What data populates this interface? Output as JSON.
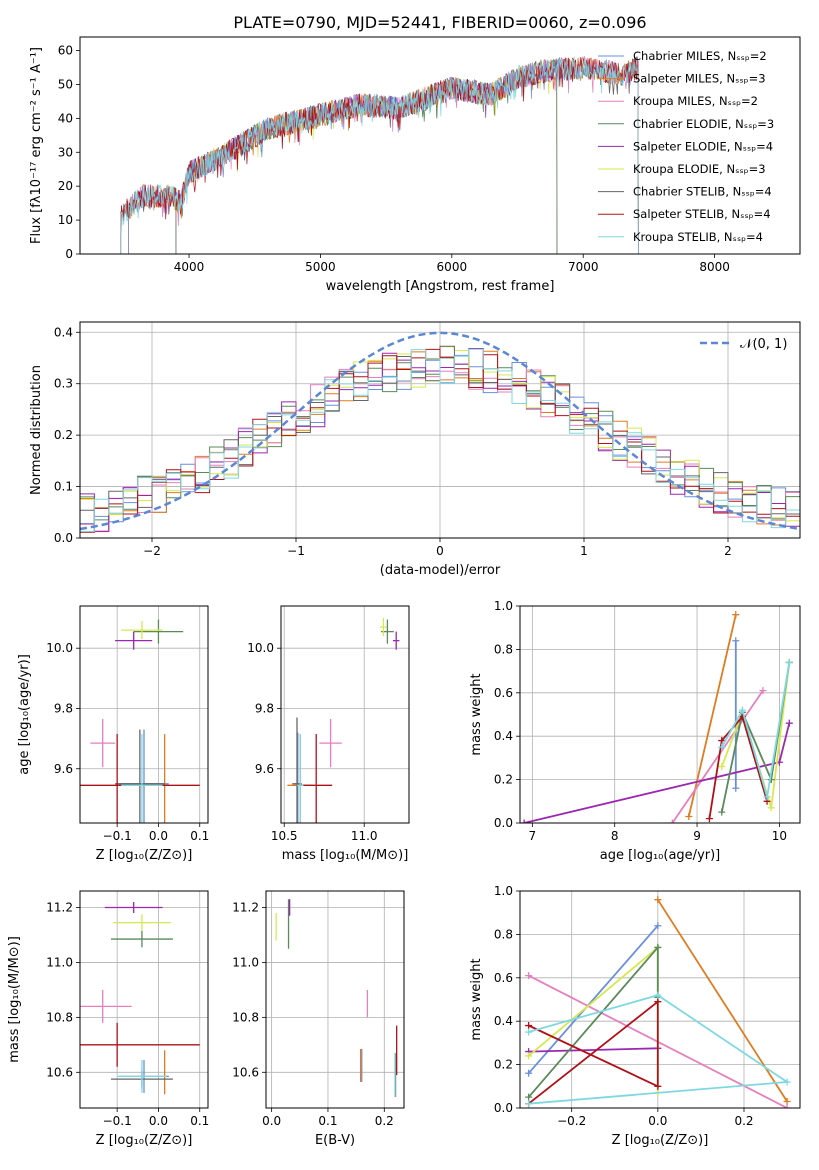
{
  "colors": [
    "#6a8fdc",
    "#e07b20",
    "#e57fbe",
    "#b8860b",
    "#5a8a5a",
    "#9b27b0",
    "#d5e84e",
    "#666666",
    "#b01018",
    "#7fd8e0"
  ],
  "chart_data": [
    {
      "id": "spectrum",
      "type": "line",
      "title": "PLATE=0790, MJD=52441, FIBERID=0060, z=0.096",
      "xlabel": "wavelength [Angstrom, rest frame]",
      "ylabel": "Flux [fλ10⁻¹⁷ erg cm⁻² s⁻¹ A⁻¹]",
      "xlim": [
        3170,
        8650
      ],
      "ylim": [
        0,
        64
      ],
      "xticks": [
        4000,
        5000,
        6000,
        7000,
        8000
      ],
      "yticks": [
        0,
        10,
        20,
        30,
        40,
        50,
        60
      ],
      "legend_position": "top-right",
      "continuum": {
        "x": [
          3470,
          3560,
          3640,
          3700,
          3860,
          3940,
          4000,
          4300,
          4600,
          5000,
          5300,
          5600,
          6000,
          6300,
          6500,
          6700,
          7000,
          7300,
          7420
        ],
        "y": [
          11,
          14,
          17,
          17,
          17,
          15,
          24,
          30,
          37,
          41,
          44,
          43,
          49,
          47,
          52,
          54,
          55,
          53,
          55
        ]
      },
      "series": [
        {
          "name": "Chabrier MILES, N_SSP=2",
          "xmin": 3540,
          "xmax": 7420
        },
        {
          "name": "Salpeter MILES, N_SSP=3",
          "xmin": 3540,
          "xmax": 7420
        },
        {
          "name": "Kroupa MILES, N_SSP=2",
          "xmin": 3540,
          "xmax": 7420
        },
        {
          "name": "Chabrier ELODIE, N_SSP=3",
          "xmin": 3900,
          "xmax": 6800
        },
        {
          "name": "Salpeter ELODIE, N_SSP=4",
          "xmin": 3900,
          "xmax": 6800
        },
        {
          "name": "Kroupa ELODIE, N_SSP=3",
          "xmin": 3900,
          "xmax": 6800
        },
        {
          "name": "Chabrier STELIB, N_SSP=4",
          "xmin": 3480,
          "xmax": 7420
        },
        {
          "name": "Salpeter STELIB, N_SSP=4",
          "xmin": 3480,
          "xmax": 7420
        },
        {
          "name": "Kroupa STELIB, N_SSP=4",
          "xmin": 3480,
          "xmax": 7420
        }
      ]
    },
    {
      "id": "residuals",
      "type": "line",
      "xlabel": "(data-model)/error",
      "ylabel": "Normed distribution",
      "xlim": [
        -2.5,
        2.5
      ],
      "ylim": [
        0,
        0.42
      ],
      "xticks": [
        -2,
        -1,
        0,
        1,
        2
      ],
      "xtick_labels": [
        "−2",
        "−1",
        "0",
        "1",
        "2"
      ],
      "yticks": [
        0.0,
        0.1,
        0.2,
        0.3,
        0.4
      ],
      "ytick_labels": [
        "0.0",
        "0.1",
        "0.2",
        "0.3",
        "0.4"
      ],
      "grid": true,
      "legend": "𝒩(0, 1)",
      "legend_position": "top-right",
      "histogram_bins": 50,
      "histogram_series": 9
    },
    {
      "id": "age-vs-Z",
      "type": "scatter",
      "xlabel": "Z [log₁₀(Z/Z⊙)]",
      "ylabel": "age  [log₁₀(age/yr)]",
      "xlim": [
        -0.19,
        0.12
      ],
      "ylim": [
        9.42,
        10.14
      ],
      "xticks": [
        -0.1,
        0.0,
        0.1
      ],
      "xtick_labels": [
        "−0.1",
        "0.0",
        "0.1"
      ],
      "yticks": [
        9.6,
        9.8,
        10.0
      ],
      "ytick_labels": [
        "9.6",
        "9.8",
        "10.0"
      ],
      "grid": true,
      "points": [
        {
          "x": -0.035,
          "y": 9.55,
          "xerr": 0.06,
          "yerr": 0.18,
          "c": 0
        },
        {
          "x": 0.015,
          "y": 9.545,
          "xerr": 0.0,
          "yerr": 0.17,
          "c": 1
        },
        {
          "x": -0.135,
          "y": 9.685,
          "xerr": 0.03,
          "yerr": 0.08,
          "c": 2
        },
        {
          "x": 0.0,
          "y": 10.055,
          "xerr": 0.06,
          "yerr": 0.04,
          "c": 4
        },
        {
          "x": -0.06,
          "y": 10.025,
          "xerr": 0.045,
          "yerr": 0.03,
          "c": 5
        },
        {
          "x": -0.04,
          "y": 10.06,
          "xerr": 0.05,
          "yerr": 0.03,
          "c": 6
        },
        {
          "x": -0.045,
          "y": 9.55,
          "xerr": 0.06,
          "yerr": 0.18,
          "c": 7
        },
        {
          "x": -0.1,
          "y": 9.545,
          "xerr": 0.2,
          "yerr": 0.17,
          "c": 8
        },
        {
          "x": -0.04,
          "y": 9.545,
          "xerr": 0.05,
          "yerr": 0.17,
          "c": 9
        }
      ]
    },
    {
      "id": "age-vs-mass",
      "type": "scatter",
      "xlabel": "mass [log₁₀(M/M⊙)]",
      "ylabel": "",
      "xlim": [
        10.48,
        11.28
      ],
      "ylim": [
        9.42,
        10.14
      ],
      "xticks": [
        10.5,
        11.0
      ],
      "xtick_labels": [
        "10.5",
        "11.0"
      ],
      "yticks": [
        9.6,
        9.8,
        10.0
      ],
      "ytick_labels": [
        "9.6",
        "9.8",
        "10.0"
      ],
      "grid": true,
      "points": [
        {
          "x": 10.585,
          "y": 9.55,
          "xerr": 0.02,
          "yerr": 0.17,
          "c": 0
        },
        {
          "x": 10.6,
          "y": 9.545,
          "xerr": 0.08,
          "yerr": 0.17,
          "c": 1
        },
        {
          "x": 10.79,
          "y": 9.685,
          "xerr": 0.07,
          "yerr": 0.08,
          "c": 2
        },
        {
          "x": 11.145,
          "y": 10.055,
          "xerr": 0.04,
          "yerr": 0.04,
          "c": 4
        },
        {
          "x": 11.2,
          "y": 10.025,
          "xerr": 0.02,
          "yerr": 0.03,
          "c": 5
        },
        {
          "x": 11.12,
          "y": 10.07,
          "xerr": 0.02,
          "yerr": 0.03,
          "c": 6
        },
        {
          "x": 10.58,
          "y": 9.55,
          "xerr": 0.03,
          "yerr": 0.22,
          "c": 7
        },
        {
          "x": 10.7,
          "y": 9.545,
          "xerr": 0.1,
          "yerr": 0.17,
          "c": 8
        },
        {
          "x": 10.6,
          "y": 9.545,
          "xerr": 0.02,
          "yerr": 0.17,
          "c": 9
        }
      ]
    },
    {
      "id": "massweight-vs-age",
      "type": "line",
      "xlabel": "age  [log₁₀(age/yr)]",
      "ylabel": "mass weight",
      "xlim": [
        6.85,
        10.25
      ],
      "ylim": [
        0,
        1
      ],
      "xticks": [
        7,
        8,
        9,
        10
      ],
      "xtick_labels": [
        "7",
        "8",
        "9",
        "10"
      ],
      "yticks": [
        0.0,
        0.2,
        0.4,
        0.6,
        0.8,
        1.0
      ],
      "ytick_labels": [
        "0.0",
        "0.2",
        "0.4",
        "0.6",
        "0.8",
        "1.0"
      ],
      "grid": true,
      "series": [
        {
          "c": 0,
          "x": [
            9.47,
            9.47
          ],
          "y": [
            0.16,
            0.84
          ]
        },
        {
          "c": 1,
          "x": [
            8.9,
            9.47
          ],
          "y": [
            0.03,
            0.96
          ]
        },
        {
          "c": 2,
          "x": [
            8.7,
            9.8
          ],
          "y": [
            0.0,
            0.61
          ]
        },
        {
          "c": 5,
          "x": [
            6.9,
            10.0,
            10.12
          ],
          "y": [
            0.0,
            0.28,
            0.46
          ]
        },
        {
          "c": 6,
          "x": [
            9.3,
            9.55,
            9.9,
            10.12
          ],
          "y": [
            0.26,
            0.51,
            0.07,
            0.74
          ]
        },
        {
          "c": 4,
          "x": [
            9.3,
            9.55,
            9.9,
            10.12
          ],
          "y": [
            0.05,
            0.51,
            0.2,
            0.74
          ]
        },
        {
          "c": 8,
          "x": [
            9.15,
            9.3,
            9.55,
            9.85
          ],
          "y": [
            0.02,
            0.38,
            0.49,
            0.1
          ]
        },
        {
          "c": 9,
          "x": [
            9.3,
            9.55,
            9.85,
            10.12
          ],
          "y": [
            0.35,
            0.52,
            0.12,
            0.74
          ]
        }
      ]
    },
    {
      "id": "mass-vs-Z",
      "type": "scatter",
      "xlabel": "Z [log₁₀(Z/Z⊙)]",
      "ylabel": "mass [log₁₀(M/M⊙)]",
      "xlim": [
        -0.19,
        0.12
      ],
      "ylim": [
        10.47,
        11.26
      ],
      "xticks": [
        -0.1,
        0.0,
        0.1
      ],
      "xtick_labels": [
        "−0.1",
        "0.0",
        "0.1"
      ],
      "yticks": [
        10.6,
        10.8,
        11.0,
        11.2
      ],
      "ytick_labels": [
        "10.6",
        "10.8",
        "11.0",
        "11.2"
      ],
      "grid": true,
      "points": [
        {
          "x": -0.035,
          "y": 10.585,
          "xerr": 0.06,
          "yerr": 0.06,
          "c": 0
        },
        {
          "x": 0.015,
          "y": 10.6,
          "xerr": 0.0,
          "yerr": 0.08,
          "c": 1
        },
        {
          "x": -0.135,
          "y": 10.84,
          "xerr": 0.07,
          "yerr": 0.06,
          "c": 2
        },
        {
          "x": -0.04,
          "y": 11.085,
          "xerr": 0.075,
          "yerr": 0.03,
          "c": 4
        },
        {
          "x": -0.06,
          "y": 11.2,
          "xerr": 0.07,
          "yerr": 0.02,
          "c": 5
        },
        {
          "x": -0.04,
          "y": 11.145,
          "xerr": 0.07,
          "yerr": 0.03,
          "c": 6
        },
        {
          "x": -0.04,
          "y": 10.575,
          "xerr": 0.075,
          "yerr": 0.03,
          "c": 7
        },
        {
          "x": -0.1,
          "y": 10.7,
          "xerr": 0.2,
          "yerr": 0.08,
          "c": 8
        },
        {
          "x": -0.04,
          "y": 10.585,
          "xerr": 0.06,
          "yerr": 0.06,
          "c": 9
        }
      ]
    },
    {
      "id": "mass-vs-EBV",
      "type": "scatter",
      "xlabel": "E(B-V)",
      "ylabel": "",
      "xlim": [
        -0.01,
        0.235
      ],
      "ylim": [
        10.47,
        11.26
      ],
      "xticks": [
        0.0,
        0.1,
        0.2
      ],
      "xtick_labels": [
        "0.0",
        "0.1",
        "0.2"
      ],
      "yticks": [
        10.6,
        10.8,
        11.0,
        11.2
      ],
      "ytick_labels": [
        "10.6",
        "10.8",
        "11.0",
        "11.2"
      ],
      "grid": true,
      "points": [
        {
          "x": 0.16,
          "y": 10.625,
          "yerr": 0.06,
          "c": 0
        },
        {
          "x": 0.158,
          "y": 10.625,
          "yerr": 0.06,
          "c": 1
        },
        {
          "x": 0.17,
          "y": 10.85,
          "yerr": 0.05,
          "c": 2
        },
        {
          "x": 0.03,
          "y": 11.14,
          "yerr": 0.09,
          "c": 4
        },
        {
          "x": 0.032,
          "y": 11.2,
          "yerr": 0.03,
          "c": 5
        },
        {
          "x": 0.008,
          "y": 11.13,
          "yerr": 0.05,
          "c": 6
        },
        {
          "x": 0.22,
          "y": 10.59,
          "yerr": 0.08,
          "c": 7
        },
        {
          "x": 0.222,
          "y": 10.68,
          "yerr": 0.09,
          "c": 8
        },
        {
          "x": 0.219,
          "y": 10.59,
          "yerr": 0.08,
          "c": 9
        }
      ]
    },
    {
      "id": "massweight-vs-Z",
      "type": "line",
      "xlabel": "Z [log₁₀(Z/Z⊙)]",
      "ylabel": "mass weight",
      "xlim": [
        -0.32,
        0.33
      ],
      "ylim": [
        0,
        1
      ],
      "xticks": [
        -0.2,
        0.0,
        0.2
      ],
      "xtick_labels": [
        "−0.2",
        "0.0",
        "0.2"
      ],
      "yticks": [
        0.0,
        0.2,
        0.4,
        0.6,
        0.8,
        1.0
      ],
      "ytick_labels": [
        "0.0",
        "0.2",
        "0.4",
        "0.6",
        "0.8",
        "1.0"
      ],
      "grid": true,
      "series": [
        {
          "c": 0,
          "x": [
            -0.3,
            0.0
          ],
          "y": [
            0.16,
            0.84
          ]
        },
        {
          "c": 1,
          "x": [
            0.0,
            0.3
          ],
          "y": [
            0.96,
            0.03
          ]
        },
        {
          "c": 2,
          "x": [
            -0.3,
            0.3
          ],
          "y": [
            0.61,
            0.0
          ]
        },
        {
          "c": 5,
          "x": [
            -0.3,
            0.0
          ],
          "y": [
            0.26,
            0.275
          ]
        },
        {
          "c": 6,
          "x": [
            -0.3,
            0.0,
            0.0
          ],
          "y": [
            0.24,
            0.74,
            0.07
          ]
        },
        {
          "c": 4,
          "x": [
            -0.3,
            0.0,
            0.0
          ],
          "y": [
            0.05,
            0.74,
            0.51
          ]
        },
        {
          "c": 8,
          "x": [
            -0.3,
            0.0,
            0.0,
            -0.3
          ],
          "y": [
            0.02,
            0.49,
            0.1,
            0.38
          ]
        },
        {
          "c": 9,
          "x": [
            -0.3,
            0.0,
            0.3,
            -0.3
          ],
          "y": [
            0.35,
            0.52,
            0.12,
            0.02
          ]
        }
      ]
    }
  ]
}
